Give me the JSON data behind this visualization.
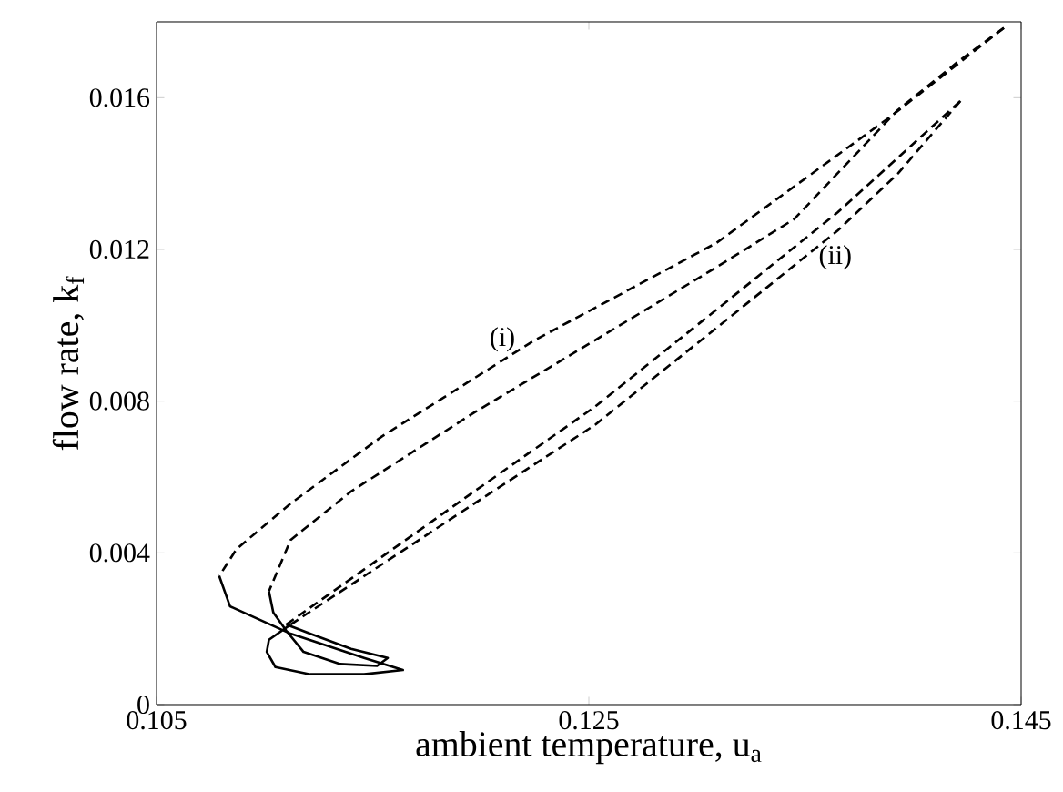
{
  "chart_data": {
    "type": "line",
    "xlabel": "ambient temperature, u$_{a}$",
    "ylabel": "flow rate, k$_{f}$",
    "xlim": [
      0.105,
      0.145
    ],
    "ylim": [
      0,
      0.018
    ],
    "xticks": [
      0.105,
      0.125,
      0.145
    ],
    "yticks": [
      0,
      0.004,
      0.008,
      0.012,
      0.016
    ],
    "grid": false,
    "marker": "none",
    "annotations": [
      "(i)",
      "(ii)"
    ],
    "series": [
      {
        "color": "#000000",
        "line_style": "dashed",
        "x": [
          0.1442,
          0.139,
          0.1309,
          0.1225,
          0.1154,
          0.1112,
          0.1087,
          0.1079
        ],
        "values": [
          0.01784,
          0.01552,
          0.01217,
          0.00961,
          0.00706,
          0.0053,
          0.0041,
          0.00339
        ]
      },
      {
        "color": "#000000",
        "line_style": "solid",
        "x": [
          0.1079,
          0.1084,
          0.1112,
          0.1146,
          0.1164,
          0.1146,
          0.1121,
          0.1105,
          0.1101,
          0.1102,
          0.1112
        ],
        "values": [
          0.00339,
          0.00259,
          0.00187,
          0.00123,
          0.00091,
          0.0008,
          0.0008,
          0.00099,
          0.00139,
          0.00171,
          0.00211
        ]
      },
      {
        "color": "#000000",
        "line_style": "dashed",
        "x": [
          0.1112,
          0.1197,
          0.1253,
          0.1309,
          0.1365,
          0.1393,
          0.1422
        ],
        "values": [
          0.00211,
          0.0053,
          0.00738,
          0.00993,
          0.01249,
          0.014,
          0.01592
        ]
      },
      {
        "color": "#000000",
        "line_style": "dashed",
        "x": [
          0.1442,
          0.1421,
          0.1393,
          0.1345,
          0.1309,
          0.1253,
          0.1197,
          0.114,
          0.1112,
          0.1102
        ],
        "values": [
          0.01784,
          0.01696,
          0.01568,
          0.0128,
          0.01153,
          0.00961,
          0.0077,
          0.00562,
          0.00434,
          0.00299
        ]
      },
      {
        "color": "#000000",
        "line_style": "solid",
        "x": [
          0.1102,
          0.1104,
          0.111,
          0.1118,
          0.1135,
          0.1152,
          0.1157,
          0.114,
          0.1121,
          0.111
        ],
        "values": [
          0.00299,
          0.00243,
          0.00195,
          0.00139,
          0.00107,
          0.00102,
          0.00123,
          0.00147,
          0.00187,
          0.00211
        ]
      },
      {
        "color": "#000000",
        "line_style": "dashed",
        "x": [
          0.111,
          0.1197,
          0.1253,
          0.1309,
          0.1365,
          0.1422
        ],
        "values": [
          0.00211,
          0.00562,
          0.00786,
          0.01041,
          0.01297,
          0.01592
        ]
      }
    ]
  }
}
